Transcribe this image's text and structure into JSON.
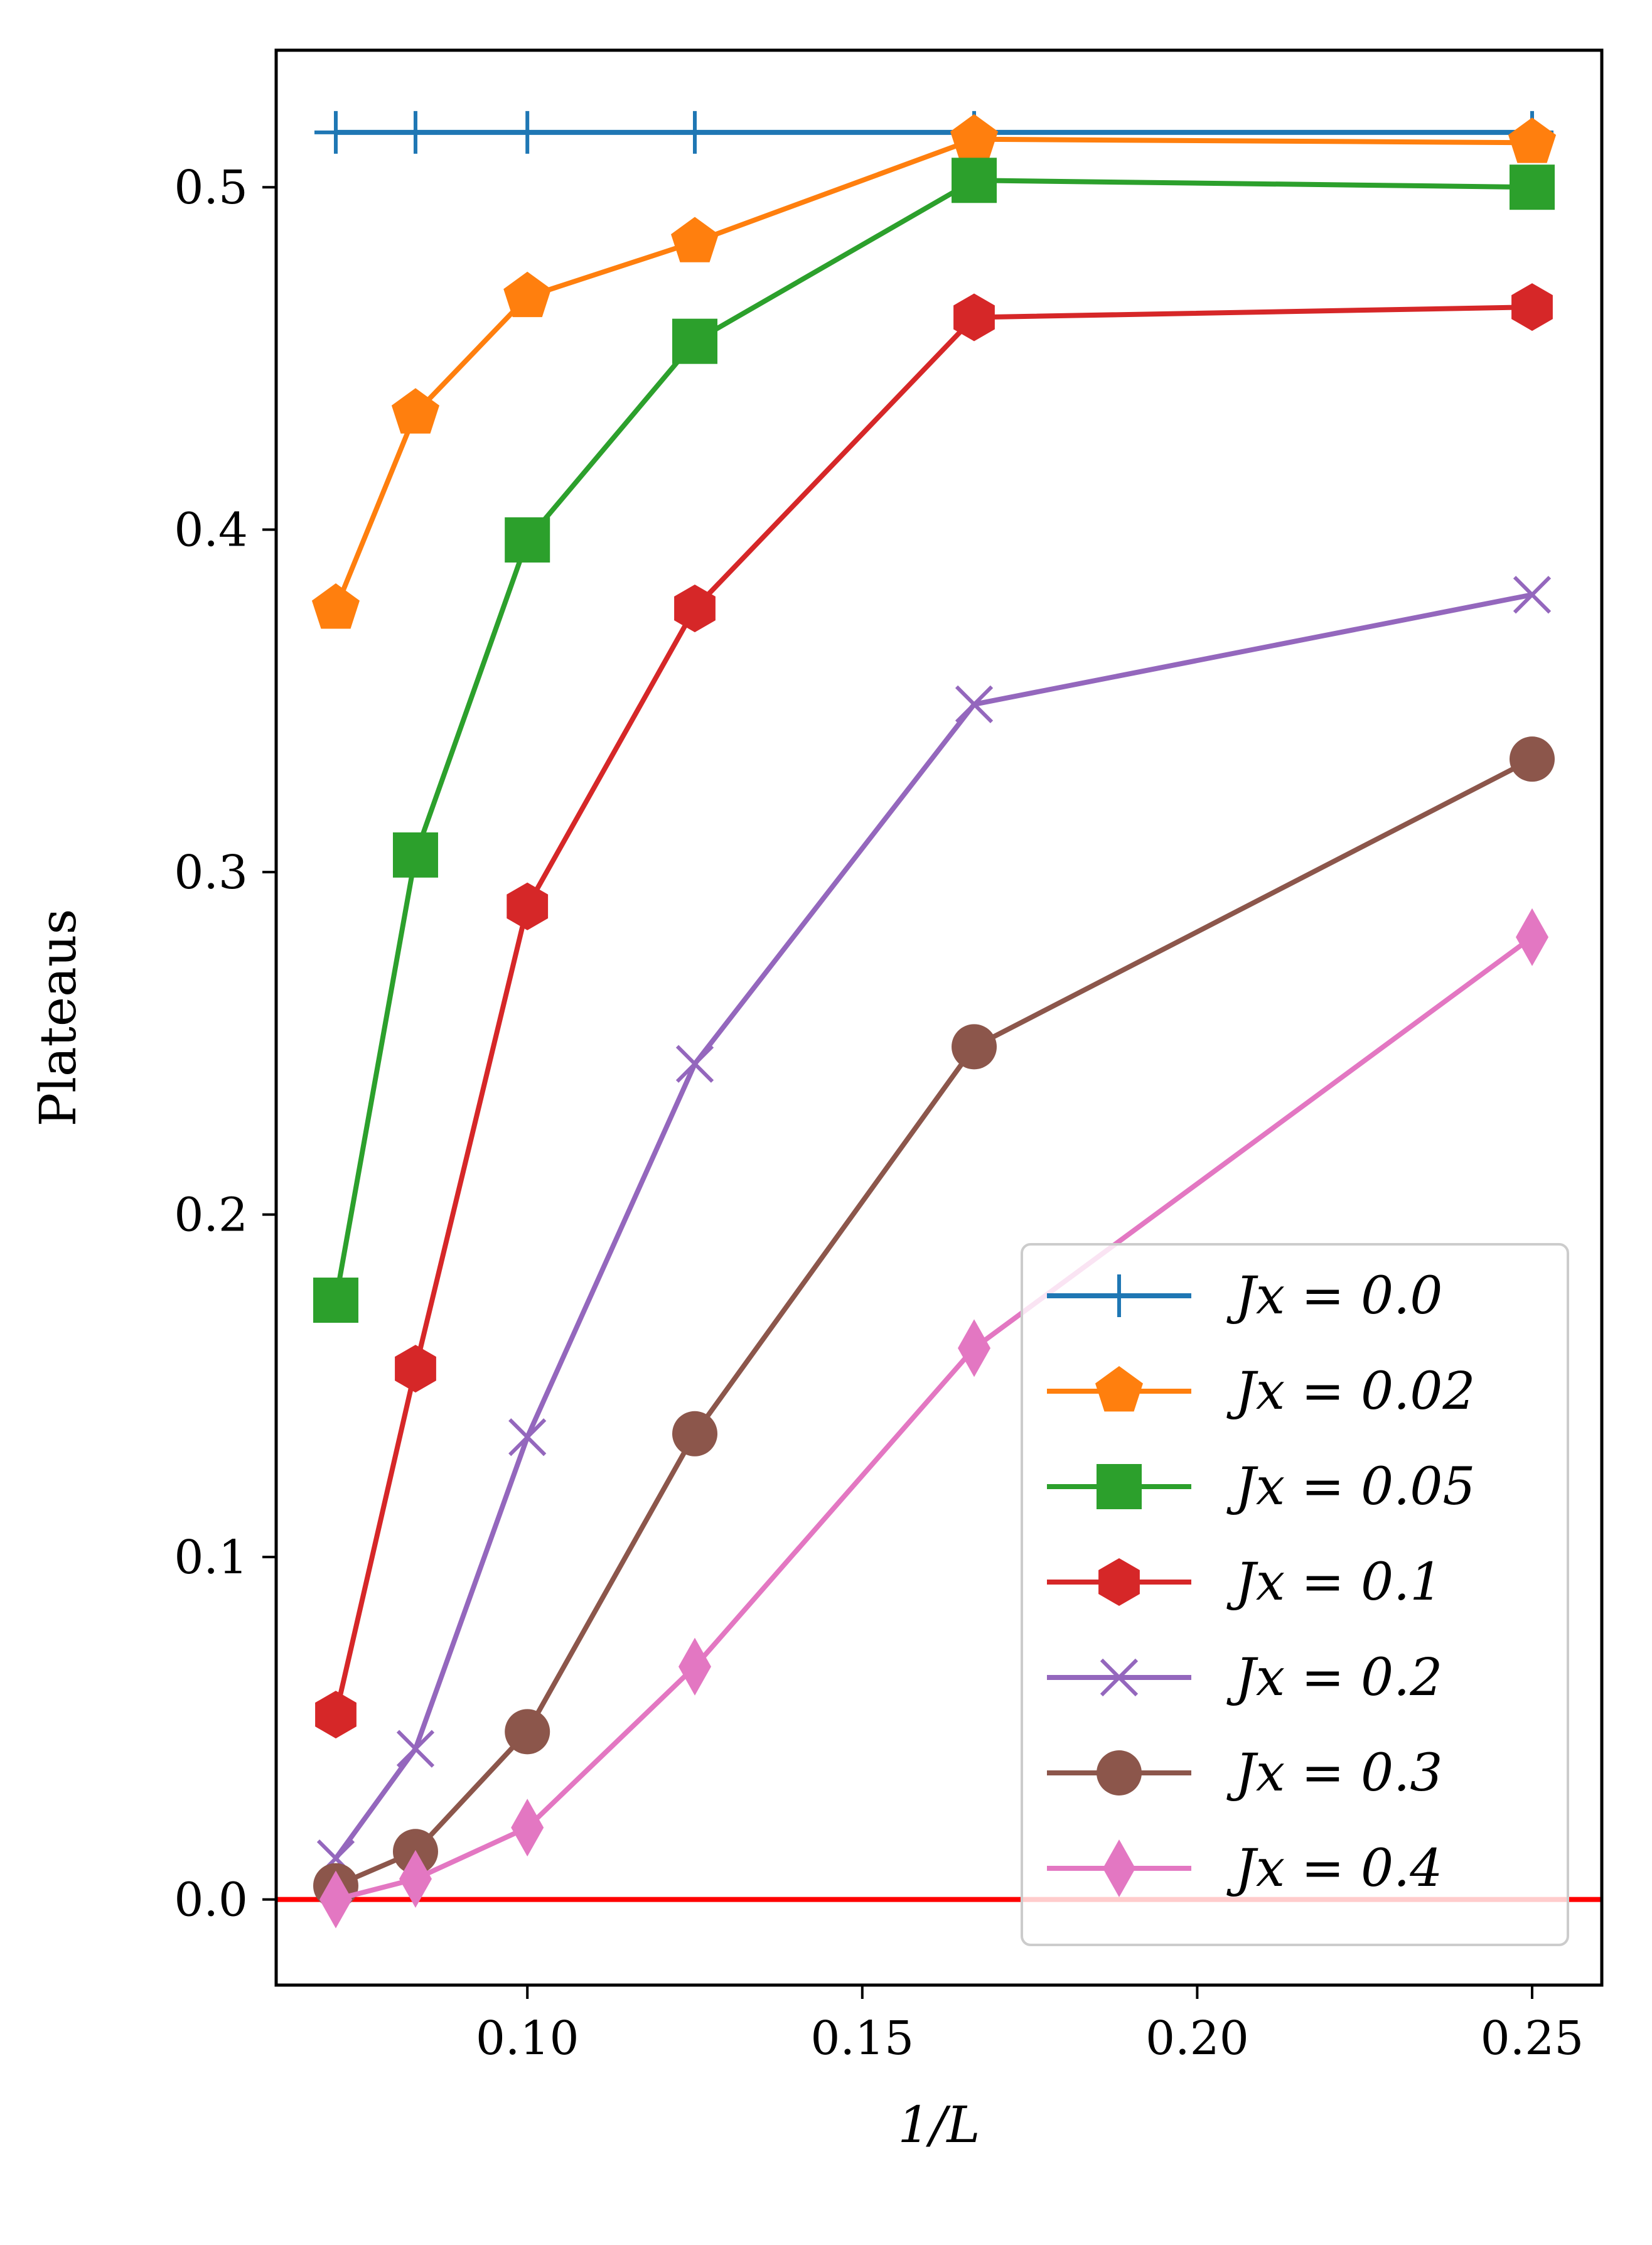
{
  "chart_data": {
    "type": "line",
    "title": "",
    "xlabel": "1/L",
    "ylabel": "Plateaus",
    "xlim": [
      0.0625,
      0.2604
    ],
    "ylim": [
      -0.025,
      0.54
    ],
    "x": [
      0.0714,
      0.0833,
      0.1,
      0.125,
      0.1667,
      0.25
    ],
    "xticks": [
      0.1,
      0.15,
      0.2,
      0.25
    ],
    "xtick_labels": [
      "0.10",
      "0.15",
      "0.20",
      "0.25"
    ],
    "yticks": [
      0.0,
      0.1,
      0.2,
      0.3,
      0.4,
      0.5
    ],
    "ytick_labels": [
      "0.0",
      "0.1",
      "0.2",
      "0.3",
      "0.4",
      "0.5"
    ],
    "reference_line": {
      "y": 0.0,
      "color": "#ff0000"
    },
    "legend_position": "lower-right",
    "series": [
      {
        "name": "J_x = 0.0",
        "label": "Jx = 0.0",
        "color": "#1f77b4",
        "marker": "plus",
        "x": [
          0.0714,
          0.0833,
          0.1,
          0.125,
          0.1667,
          0.25
        ],
        "values": [
          0.516,
          0.516,
          0.516,
          0.516,
          0.516,
          0.516
        ]
      },
      {
        "name": "J_x = 0.02",
        "label": "Jx = 0.02",
        "color": "#ff7f0e",
        "marker": "pentagon",
        "x": [
          0.0714,
          0.0833,
          0.1,
          0.125,
          0.1667,
          0.25
        ],
        "values": [
          0.377,
          0.434,
          0.468,
          0.484,
          0.514,
          0.513
        ]
      },
      {
        "name": "J_x = 0.05",
        "label": "Jx = 0.05",
        "color": "#2ca02c",
        "marker": "square",
        "x": [
          0.0714,
          0.0833,
          0.1,
          0.125,
          0.1667,
          0.25
        ],
        "values": [
          0.175,
          0.305,
          0.397,
          0.455,
          0.502,
          0.5
        ]
      },
      {
        "name": "J_x = 0.1",
        "label": "Jx = 0.1",
        "color": "#d62728",
        "marker": "hexagon",
        "x": [
          0.0714,
          0.0833,
          0.1,
          0.125,
          0.1667,
          0.25
        ],
        "values": [
          0.054,
          0.155,
          0.29,
          0.377,
          0.462,
          0.465
        ]
      },
      {
        "name": "J_x = 0.2",
        "label": "Jx = 0.2",
        "color": "#9467bd",
        "marker": "x",
        "x": [
          0.0714,
          0.0833,
          0.1,
          0.125,
          0.1667,
          0.25
        ],
        "values": [
          0.012,
          0.044,
          0.135,
          0.244,
          0.349,
          0.381
        ]
      },
      {
        "name": "J_x = 0.3",
        "label": "Jx = 0.3",
        "color": "#8c564b",
        "marker": "circle",
        "x": [
          0.0714,
          0.0833,
          0.1,
          0.125,
          0.1667,
          0.25
        ],
        "values": [
          0.004,
          0.014,
          0.049,
          0.136,
          0.249,
          0.333
        ]
      },
      {
        "name": "J_x = 0.4",
        "label": "Jx = 0.4",
        "color": "#e377c2",
        "marker": "diamond",
        "x": [
          0.0714,
          0.0833,
          0.1,
          0.125,
          0.1667,
          0.25
        ],
        "values": [
          0.0,
          0.006,
          0.021,
          0.068,
          0.161,
          0.281
        ]
      }
    ]
  }
}
